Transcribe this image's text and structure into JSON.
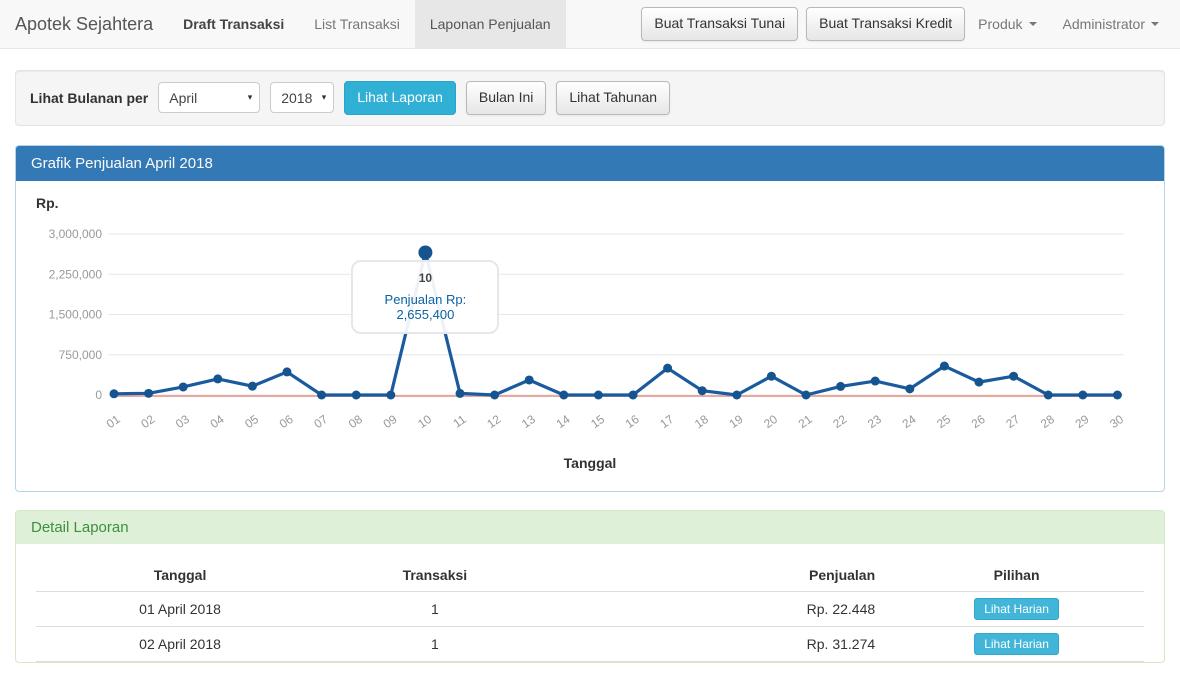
{
  "navbar": {
    "brand": "Apotek Sejahtera",
    "items": [
      {
        "label": "Draft Transaksi"
      },
      {
        "label": "List Transaksi"
      },
      {
        "label": "Laponan Penjualan"
      }
    ],
    "buttons": [
      {
        "label": "Buat Transaksi Tunai"
      },
      {
        "label": "Buat Transaksi Kredit"
      }
    ],
    "dropdowns": [
      {
        "label": "Produk"
      },
      {
        "label": "Administrator"
      }
    ]
  },
  "filter_bar": {
    "label": "Lihat Bulanan per",
    "month_value": "April",
    "year_value": "2018",
    "submit_button": "Lihat Laporan",
    "this_month_button": "Bulan Ini",
    "yearly_button": "Lihat Tahunan"
  },
  "chart_panel": {
    "title": "Grafik Penjualan April 2018",
    "y_unit_label": "Rp.",
    "x_axis_title": "Tanggal"
  },
  "chart_data": {
    "type": "line",
    "title": "Grafik Penjualan April 2018",
    "xlabel": "Tanggal",
    "ylabel": "Rp.",
    "x": [
      "01",
      "02",
      "03",
      "04",
      "05",
      "06",
      "07",
      "08",
      "09",
      "10",
      "11",
      "12",
      "13",
      "14",
      "15",
      "16",
      "17",
      "18",
      "19",
      "20",
      "21",
      "22",
      "23",
      "24",
      "25",
      "26",
      "27",
      "28",
      "29",
      "30"
    ],
    "series": [
      {
        "name": "Penjualan",
        "color": "#1a5a9e",
        "point_color": "#15548f",
        "values": [
          22448,
          31274,
          150000,
          300000,
          165000,
          430000,
          0,
          0,
          0,
          2655400,
          30000,
          0,
          280000,
          0,
          0,
          0,
          500000,
          80000,
          0,
          350000,
          0,
          160000,
          260000,
          115000,
          540000,
          240000,
          350000,
          0,
          0,
          0
        ]
      }
    ],
    "zero_line_color": "#e8a8a0",
    "grid": true,
    "grid_color": "#e7e7e7",
    "legend": false,
    "ylim": [
      0,
      3000000
    ],
    "ytick_values": [
      3000000,
      2250000,
      1500000,
      750000,
      0
    ],
    "ytick_labels": [
      "3,000,000",
      "2,250,000",
      "1,500,000",
      "750,000",
      "0"
    ],
    "tooltip": {
      "day_label": "10",
      "text": "Penjualan Rp: 2,655,400",
      "day_index": 9
    }
  },
  "detail_panel": {
    "title": "Detail Laporan",
    "table": {
      "headers": [
        "Tanggal",
        "Transaksi",
        "Penjualan",
        "Pilihan"
      ],
      "rows": [
        {
          "tanggal": "01 April 2018",
          "transaksi": "1",
          "penjualan": "Rp. 22.448",
          "action_label": "Lihat Harian"
        },
        {
          "tanggal": "02 April 2018",
          "transaksi": "1",
          "penjualan": "Rp. 31.274",
          "action_label": "Lihat Harian"
        }
      ]
    }
  },
  "colors": {
    "panel_header_blue": "#3379b5",
    "accent_cyan": "#31b0d5",
    "success_header_bg": "#dff0d8",
    "success_text": "#3e8f3e",
    "line_blue": "#1a5a9e",
    "zero_line_red": "#e8a8a0",
    "tooltip_text_blue": "#0b62a4"
  }
}
